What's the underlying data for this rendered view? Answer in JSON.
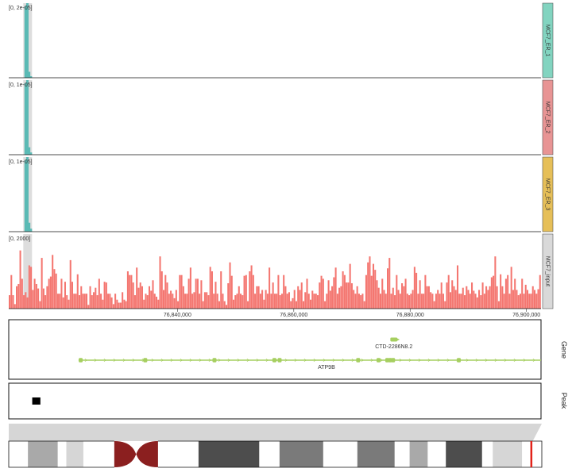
{
  "chart_data": {
    "type": "genome_tracks",
    "x_axis": {
      "range": [
        76811000,
        76902500
      ],
      "ticks": [
        76840000,
        76860000,
        76880000,
        76900000
      ],
      "tick_labels": [
        "76,840,000",
        "76,860,000",
        "76,880,000",
        "76,900,000"
      ]
    },
    "highlight_region": [
      76813500,
      76815000
    ],
    "tracks": [
      {
        "name": "MCF7_ER_1",
        "range_label": "[0, 2e-05]",
        "color": "#5bbab5",
        "tab_color": "#82d4c0",
        "bars": [
          [
            76813700,
            0.96
          ],
          [
            76814000,
            1.0
          ],
          [
            76814300,
            0.08
          ],
          [
            76814600,
            0.02
          ]
        ]
      },
      {
        "name": "MCF7_ER_2",
        "range_label": "[0, 1e-05]",
        "color": "#5bbab5",
        "tab_color": "#e89494",
        "bars": [
          [
            76813700,
            0.96
          ],
          [
            76814000,
            1.0
          ],
          [
            76814300,
            0.1
          ],
          [
            76814600,
            0.03
          ]
        ]
      },
      {
        "name": "MCF7_ER_3",
        "range_label": "[0, 1e-05]",
        "color": "#5bbab5",
        "tab_color": "#e6bf58",
        "bars": [
          [
            76813700,
            0.96
          ],
          [
            76814000,
            1.0
          ],
          [
            76814300,
            0.12
          ],
          [
            76814600,
            0.04
          ]
        ]
      },
      {
        "name": "MCF7_input",
        "range_label": "[0, 2000]",
        "color": "#f47670",
        "tab_color": "#d9d9d9",
        "bar_width_bp": 300,
        "values": [
          0.18,
          0.45,
          0.18,
          0.06,
          0.3,
          0.33,
          0.78,
          0.4,
          0.18,
          0.22,
          0.15,
          0.58,
          0.56,
          0.25,
          0.4,
          0.33,
          0.27,
          0.1,
          0.68,
          0.27,
          0.18,
          0.3,
          0.4,
          0.43,
          0.72,
          0.53,
          0.47,
          0.2,
          0.2,
          0.4,
          0.15,
          0.36,
          0.18,
          0.12,
          0.65,
          0.36,
          0.2,
          0.2,
          0.46,
          0.18,
          0.3,
          0.2,
          0.2,
          0.2,
          0.05,
          0.3,
          0.18,
          0.22,
          0.28,
          0.18,
          0.4,
          0.2,
          0.12,
          0.36,
          0.35,
          0.2,
          0.2,
          0.15,
          0.06,
          0.2,
          0.12,
          0.08,
          0.08,
          0.22,
          0.12,
          0.1,
          0.5,
          0.45,
          0.45,
          0.35,
          0.18,
          0.55,
          0.28,
          0.35,
          0.3,
          0.12,
          0.2,
          0.18,
          0.3,
          0.24,
          0.38,
          0.2,
          0.16,
          0.12,
          0.7,
          0.5,
          0.25,
          0.45,
          0.35,
          0.2,
          0.24,
          0.2,
          0.14,
          0.25,
          0.1,
          0.45,
          0.45,
          0.3,
          0.2,
          0.2,
          0.4,
          0.55,
          0.2,
          0.22,
          0.4,
          0.4,
          0.2,
          0.38,
          0.1,
          0.22,
          0.22,
          0.18,
          0.56,
          0.5,
          0.2,
          0.36,
          0.2,
          0.1,
          0.5,
          0.2,
          0.1,
          0.05,
          0.34,
          0.62,
          0.44,
          0.12,
          0.18,
          0.2,
          0.3,
          0.2,
          0.18,
          0.44,
          0.45,
          0.1,
          0.5,
          0.58,
          0.45,
          0.2,
          0.3,
          0.3,
          0.2,
          0.25,
          0.12,
          0.25,
          0.2,
          0.55,
          0.2,
          0.35,
          0.2,
          0.2,
          0.45,
          0.18,
          0.2,
          0.45,
          0.3,
          0.2,
          0.22,
          0.1,
          0.14,
          0.25,
          0.1,
          0.3,
          0.25,
          0.35,
          0.1,
          0.22,
          0.4,
          0.2,
          0.12,
          0.24,
          0.2,
          0.2,
          0.18,
          0.35,
          0.44,
          0.4,
          0.1,
          0.2,
          0.38,
          0.24,
          0.3,
          0.42,
          0.55,
          0.2,
          0.28,
          0.3,
          0.5,
          0.45,
          0.35,
          0.35,
          0.6,
          0.34,
          0.25,
          0.2,
          0.3,
          0.2,
          0.18,
          0.2,
          0.1,
          0.45,
          0.62,
          0.7,
          0.44,
          0.6,
          0.52,
          0.38,
          0.28,
          0.2,
          0.4,
          0.25,
          0.2,
          0.54,
          0.68,
          0.2,
          0.28,
          0.18,
          0.45,
          0.25,
          0.2,
          0.34,
          0.3,
          0.4,
          0.2,
          0.18,
          0.2,
          0.25,
          0.56,
          0.48,
          0.2,
          0.38,
          0.2,
          0.2,
          0.45,
          0.3,
          0.3,
          0.22,
          0.2,
          0.1,
          0.2,
          0.25,
          0.2,
          0.35,
          0.2,
          0.1,
          0.35,
          0.45,
          0.22,
          0.38,
          0.3,
          0.25,
          0.58,
          0.2,
          0.2,
          0.28,
          0.18,
          0.3,
          0.25,
          0.2,
          0.35,
          0.24,
          0.2,
          0.15,
          0.25,
          0.18,
          0.35,
          0.2,
          0.3,
          0.25,
          0.3,
          0.42,
          0.44,
          0.7,
          0.3,
          0.1,
          0.46,
          0.3,
          0.2,
          0.4,
          0.45,
          0.2,
          0.56,
          0.25,
          0.4,
          0.25,
          0.18,
          0.2,
          0.4,
          0.2,
          0.32,
          0.25,
          0.2,
          0.2,
          0.3,
          0.25,
          0.2,
          0.26,
          0.45
        ]
      }
    ],
    "genes": [
      {
        "name": "ATP9B",
        "color": "#a6cf60",
        "start": 76823000,
        "end": 76902500,
        "strand": "+",
        "exons": [
          76823300,
          76834400,
          76846300,
          76856600,
          76857500,
          76871000,
          76874500,
          76876000,
          76876500,
          76877000,
          76888300
        ]
      },
      {
        "name": "CTD-2286N8.2",
        "color": "#a6cf60",
        "start": 76876600,
        "end": 76877800,
        "strand": "+"
      }
    ],
    "peak_track": {
      "name": "Peak",
      "peaks": [
        [
          76813400,
          76814800
        ]
      ]
    },
    "gene_track_label": "Gene",
    "ideogram": {
      "bands": [
        {
          "from": 0.0,
          "to": 0.036,
          "color": "#ffffff"
        },
        {
          "from": 0.036,
          "to": 0.092,
          "color": "#a9a9a9"
        },
        {
          "from": 0.092,
          "to": 0.108,
          "color": "#ffffff"
        },
        {
          "from": 0.108,
          "to": 0.14,
          "color": "#d6d6d6"
        },
        {
          "from": 0.14,
          "to": 0.198,
          "color": "#ffffff"
        },
        {
          "from": 0.356,
          "to": 0.47,
          "color": "#4d4d4d"
        },
        {
          "from": 0.47,
          "to": 0.508,
          "color": "#ffffff"
        },
        {
          "from": 0.508,
          "to": 0.59,
          "color": "#7a7a7a"
        },
        {
          "from": 0.59,
          "to": 0.654,
          "color": "#ffffff"
        },
        {
          "from": 0.654,
          "to": 0.724,
          "color": "#7a7a7a"
        },
        {
          "from": 0.724,
          "to": 0.752,
          "color": "#ffffff"
        },
        {
          "from": 0.752,
          "to": 0.786,
          "color": "#a9a9a9"
        },
        {
          "from": 0.786,
          "to": 0.82,
          "color": "#ffffff"
        },
        {
          "from": 0.82,
          "to": 0.888,
          "color": "#4d4d4d"
        },
        {
          "from": 0.888,
          "to": 0.908,
          "color": "#ffffff"
        },
        {
          "from": 0.908,
          "to": 0.963,
          "color": "#d6d6d6"
        },
        {
          "from": 0.963,
          "to": 1.0,
          "color": "#ffffff"
        }
      ],
      "centromere": [
        0.198,
        0.28
      ],
      "centromere_color": "#8b1f1f",
      "current_position": 0.98,
      "current_color": "#e2231a"
    }
  }
}
